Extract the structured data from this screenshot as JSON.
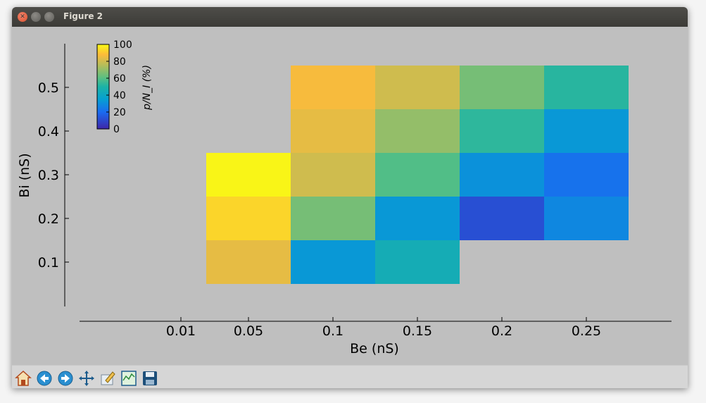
{
  "window": {
    "title": "Figure 2"
  },
  "toolbar": {
    "buttons": [
      {
        "name": "home-icon"
      },
      {
        "name": "back-icon"
      },
      {
        "name": "forward-icon"
      },
      {
        "name": "pan-icon"
      },
      {
        "name": "zoom-icon"
      },
      {
        "name": "subplots-icon"
      },
      {
        "name": "save-icon"
      }
    ]
  },
  "chart_data": {
    "type": "heatmap",
    "xlabel": "Be (nS)",
    "ylabel": "Bi (nS)",
    "x_ticks": [
      "0.01",
      "0.05",
      "0.1",
      "0.15",
      "0.2",
      "0.25"
    ],
    "y_ticks": [
      "0.1",
      "0.2",
      "0.3",
      "0.4",
      "0.5"
    ],
    "colorbar": {
      "label": "p/N_I (%)",
      "ticks": [
        "100",
        "80",
        "60",
        "40",
        "20",
        "0"
      ],
      "range": [
        0,
        100
      ],
      "colormap": "parula"
    },
    "cells": [
      {
        "be": 0.05,
        "bi": 0.1,
        "value": 84
      },
      {
        "be": 0.05,
        "bi": 0.2,
        "value": 93
      },
      {
        "be": 0.05,
        "bi": 0.3,
        "value": 99
      },
      {
        "be": 0.1,
        "bi": 0.1,
        "value": 33
      },
      {
        "be": 0.1,
        "bi": 0.2,
        "value": 65
      },
      {
        "be": 0.1,
        "bi": 0.3,
        "value": 80
      },
      {
        "be": 0.1,
        "bi": 0.4,
        "value": 84
      },
      {
        "be": 0.1,
        "bi": 0.5,
        "value": 87
      },
      {
        "be": 0.15,
        "bi": 0.1,
        "value": 45
      },
      {
        "be": 0.15,
        "bi": 0.2,
        "value": 33
      },
      {
        "be": 0.15,
        "bi": 0.3,
        "value": 59
      },
      {
        "be": 0.15,
        "bi": 0.4,
        "value": 70
      },
      {
        "be": 0.15,
        "bi": 0.5,
        "value": 80
      },
      {
        "be": 0.2,
        "bi": 0.2,
        "value": 12
      },
      {
        "be": 0.2,
        "bi": 0.3,
        "value": 31
      },
      {
        "be": 0.2,
        "bi": 0.4,
        "value": 53
      },
      {
        "be": 0.2,
        "bi": 0.5,
        "value": 65
      },
      {
        "be": 0.25,
        "bi": 0.2,
        "value": 28
      },
      {
        "be": 0.25,
        "bi": 0.3,
        "value": 22
      },
      {
        "be": 0.25,
        "bi": 0.4,
        "value": 33
      },
      {
        "be": 0.25,
        "bi": 0.5,
        "value": 52
      }
    ]
  }
}
